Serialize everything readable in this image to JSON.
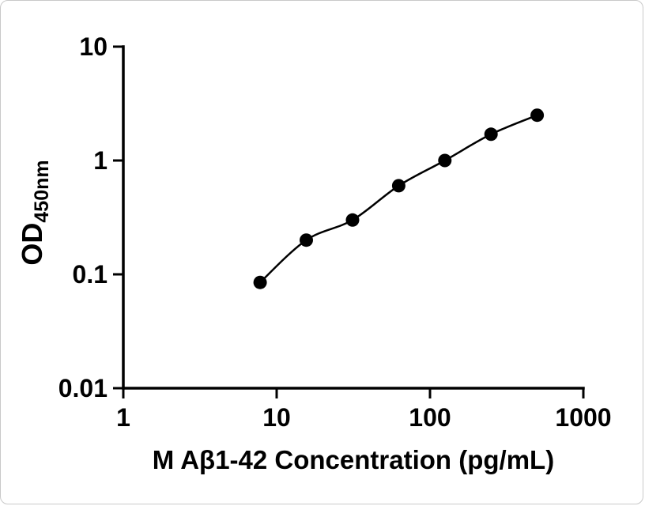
{
  "figure": {
    "background": "#ffffff",
    "border_color": "#c9c9c9"
  },
  "chart_data": {
    "type": "scatter",
    "title": "",
    "xlabel": "M Aβ1-42 Concentration (pg/mL)",
    "ylabel": "OD450nm",
    "ylabel_main": "OD",
    "ylabel_sub": "450nm",
    "x_scale": "log",
    "y_scale": "log",
    "xlim": [
      1,
      1000
    ],
    "ylim": [
      0.01,
      10
    ],
    "x_ticks": [
      1,
      10,
      100,
      1000
    ],
    "x_tick_labels": [
      "1",
      "10",
      "100",
      "1000"
    ],
    "y_ticks": [
      0.01,
      0.1,
      1,
      10
    ],
    "y_tick_labels": [
      "0.01",
      "0.1",
      "1",
      "10"
    ],
    "grid": false,
    "legend": null,
    "axis_color": "#000000",
    "marker_color": "#000000",
    "line_color": "#000000",
    "series": [
      {
        "marker": "circle",
        "points": [
          {
            "x": 7.8,
            "y": 0.085
          },
          {
            "x": 15.6,
            "y": 0.2
          },
          {
            "x": 31.25,
            "y": 0.3
          },
          {
            "x": 62.5,
            "y": 0.6
          },
          {
            "x": 125,
            "y": 1.0
          },
          {
            "x": 250,
            "y": 1.7
          },
          {
            "x": 500,
            "y": 2.5
          }
        ]
      }
    ]
  }
}
